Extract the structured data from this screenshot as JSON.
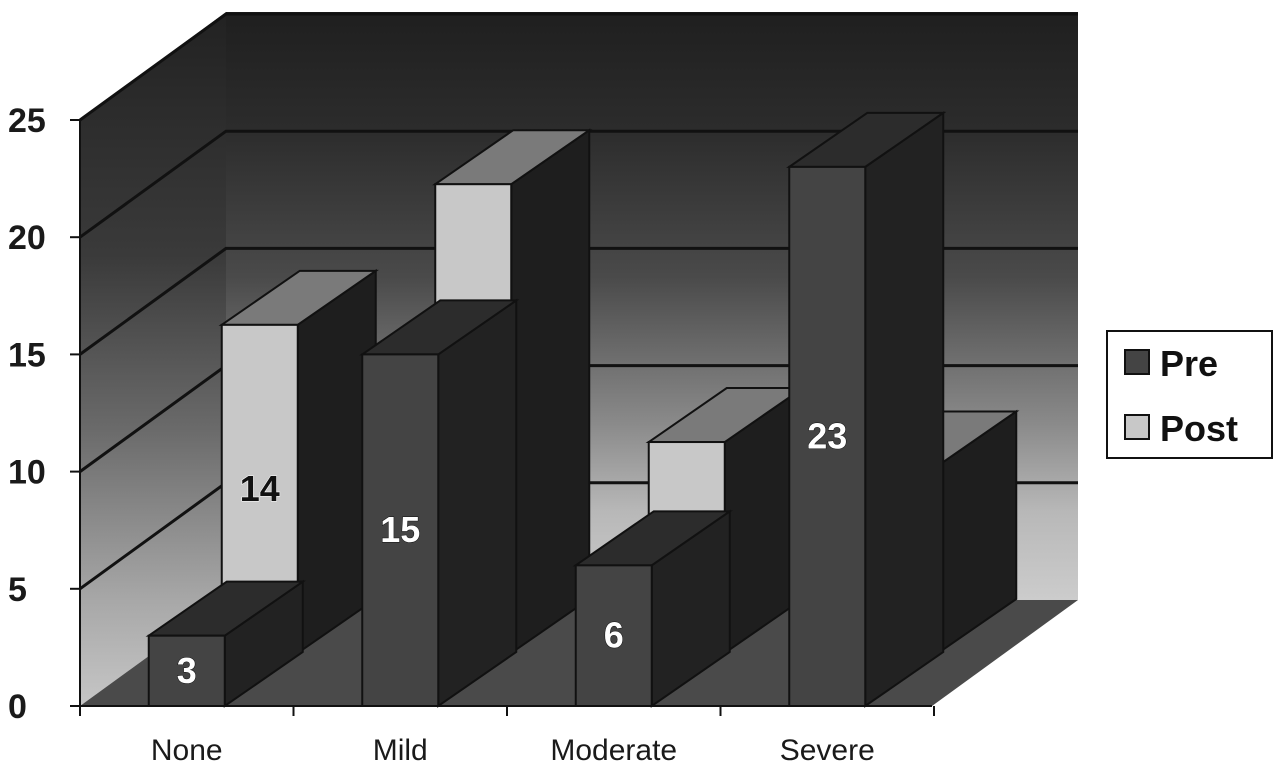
{
  "chart_data": {
    "type": "bar",
    "categories": [
      "None",
      "Mild",
      "Moderate",
      "Severe"
    ],
    "series": [
      {
        "name": "Pre",
        "values": [
          3,
          15,
          6,
          23
        ]
      },
      {
        "name": "Post",
        "values": [
          14,
          20,
          9,
          8
        ]
      }
    ],
    "ylim": [
      0,
      25
    ],
    "yticks": [
      0,
      5,
      10,
      15,
      20,
      25
    ],
    "title": "",
    "xlabel": "",
    "ylabel": "",
    "grid": true,
    "legend_position": "right",
    "colors": {
      "pre_front": "#444444",
      "pre_side": "#222222",
      "pre_top": "#2c2c2c",
      "post_front": "#c8c8c8",
      "post_side": "#1e1e1e",
      "post_top": "#7a7a7a"
    }
  }
}
